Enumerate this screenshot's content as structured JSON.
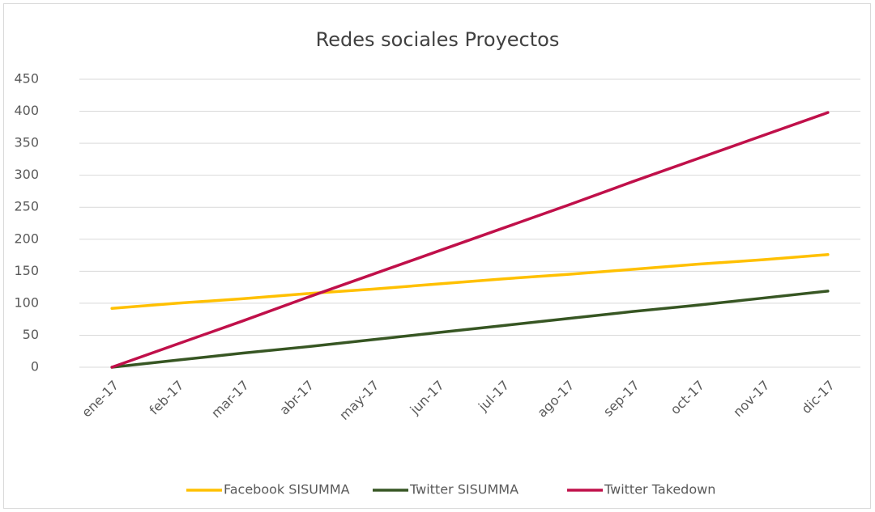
{
  "chart_data": {
    "type": "line",
    "title": "Redes sociales Proyectos",
    "categories": [
      "ene-17",
      "feb-17",
      "mar-17",
      "abr-17",
      "may-17",
      "jun-17",
      "jul-17",
      "ago-17",
      "sep-17",
      "oct-17",
      "nov-17",
      "dic-17"
    ],
    "series": [
      {
        "name": "Facebook SISUMMA",
        "color": "#ffc000",
        "values": [
          92,
          100,
          107,
          115,
          122,
          130,
          138,
          145,
          153,
          161,
          168,
          176
        ]
      },
      {
        "name": "Twitter SISUMMA",
        "color": "#375623",
        "values": [
          0,
          11,
          22,
          32,
          43,
          54,
          65,
          76,
          87,
          97,
          108,
          119
        ]
      },
      {
        "name": "Twitter Takedown",
        "color": "#c0104a",
        "values": [
          0,
          36,
          72,
          109,
          145,
          181,
          217,
          253,
          290,
          326,
          362,
          398
        ]
      }
    ],
    "ylim": [
      0,
      450
    ],
    "yticks": [
      0,
      50,
      100,
      150,
      200,
      250,
      300,
      350,
      400,
      450
    ],
    "grid": true,
    "legend": "bottom"
  }
}
